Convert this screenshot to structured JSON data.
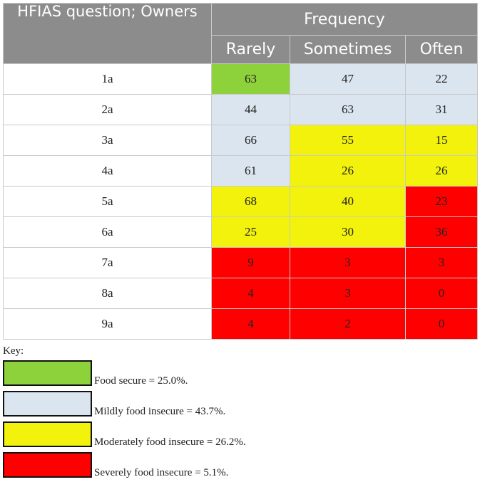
{
  "table": {
    "question_header": "HFIAS question; Owners",
    "frequency_header": "Frequency",
    "columns": [
      "Rarely",
      "Sometimes",
      "Often"
    ],
    "rows": [
      {
        "label": "1a",
        "values": [
          "63",
          "47",
          "22"
        ],
        "colors": [
          "green",
          "blue",
          "blue"
        ]
      },
      {
        "label": "2a",
        "values": [
          "44",
          "63",
          "31"
        ],
        "colors": [
          "blue",
          "blue",
          "blue"
        ]
      },
      {
        "label": "3a",
        "values": [
          "66",
          "55",
          "15"
        ],
        "colors": [
          "blue",
          "yellow",
          "yellow"
        ]
      },
      {
        "label": "4a",
        "values": [
          "61",
          "26",
          "26"
        ],
        "colors": [
          "blue",
          "yellow",
          "yellow"
        ]
      },
      {
        "label": "5a",
        "values": [
          "68",
          "40",
          "23"
        ],
        "colors": [
          "yellow",
          "yellow",
          "red"
        ]
      },
      {
        "label": "6a",
        "values": [
          "25",
          "30",
          "36"
        ],
        "colors": [
          "yellow",
          "yellow",
          "red"
        ]
      },
      {
        "label": "7a",
        "values": [
          "9",
          "3",
          "3"
        ],
        "colors": [
          "red",
          "red",
          "red"
        ]
      },
      {
        "label": "8a",
        "values": [
          "4",
          "3",
          "0"
        ],
        "colors": [
          "red",
          "red",
          "red"
        ]
      },
      {
        "label": "9a",
        "values": [
          "4",
          "2",
          "0"
        ],
        "colors": [
          "red",
          "red",
          "red"
        ]
      }
    ]
  },
  "key": {
    "title": "Key:",
    "items": [
      {
        "label": "Food secure = 25.0%.",
        "color": "#8ed23b"
      },
      {
        "label": "Mildly food insecure = 43.7%.",
        "color": "#dae5ef"
      },
      {
        "label": "Moderately food insecure = 26.2%.",
        "color": "#f2f20c"
      },
      {
        "label": "Severely food insecure = 5.1%.",
        "color": "#ff0000"
      }
    ]
  },
  "colors": {
    "header_bg": "#8c8c8c",
    "green": "#8ed23b",
    "blue": "#dae5ef",
    "yellow": "#f2f20c",
    "red": "#ff0000"
  }
}
